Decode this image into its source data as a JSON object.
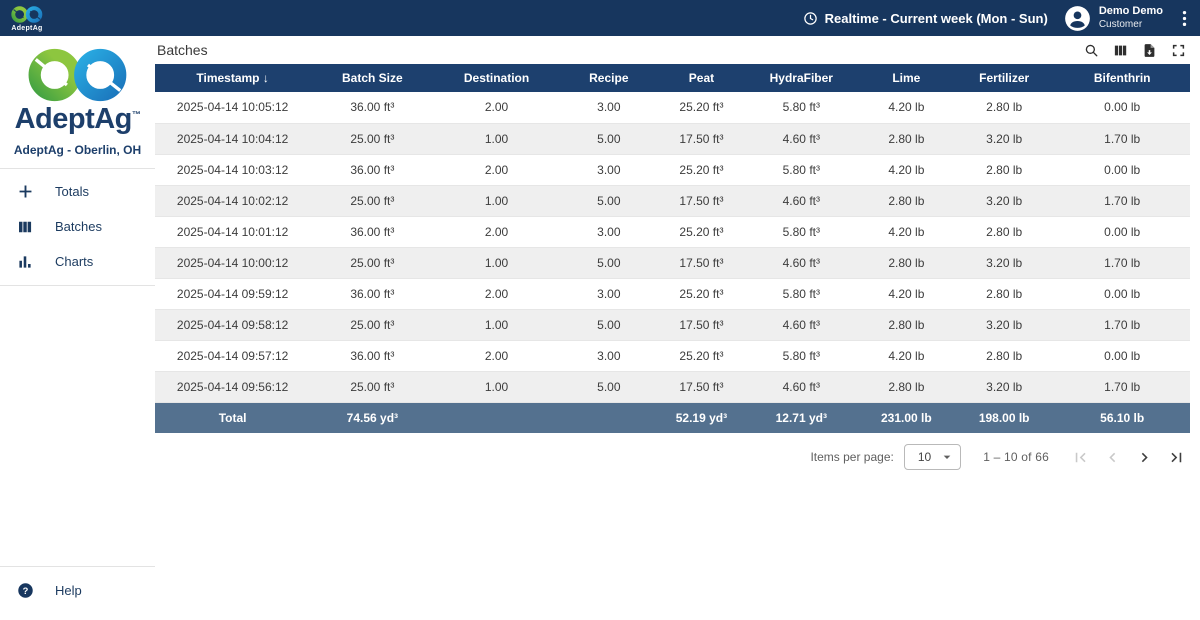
{
  "topbar": {
    "brand": "AdeptAg",
    "realtime_label": "Realtime - Current week (Mon - Sun)",
    "user_name": "Demo Demo",
    "user_role": "Customer"
  },
  "sidebar": {
    "brand": "AdeptAg",
    "brand_trademark": "™",
    "location": "AdeptAg - Oberlin, OH",
    "items": [
      {
        "label": "Totals",
        "icon": "plus-icon"
      },
      {
        "label": "Batches",
        "icon": "view-columns-icon"
      },
      {
        "label": "Charts",
        "icon": "bar-chart-icon"
      }
    ],
    "help_label": "Help"
  },
  "main": {
    "title": "Batches",
    "table": {
      "columns": [
        "Timestamp",
        "Batch Size",
        "Destination",
        "Recipe",
        "Peat",
        "HydraFiber",
        "Lime",
        "Fertilizer",
        "Bifenthrin"
      ],
      "sort_column": "Timestamp",
      "sort_indicator": "↓",
      "rows": [
        [
          "2025-04-14 10:05:12",
          "36.00 ft³",
          "2.00",
          "3.00",
          "25.20 ft³",
          "5.80 ft³",
          "4.20 lb",
          "2.80 lb",
          "0.00 lb"
        ],
        [
          "2025-04-14 10:04:12",
          "25.00 ft³",
          "1.00",
          "5.00",
          "17.50 ft³",
          "4.60 ft³",
          "2.80 lb",
          "3.20 lb",
          "1.70 lb"
        ],
        [
          "2025-04-14 10:03:12",
          "36.00 ft³",
          "2.00",
          "3.00",
          "25.20 ft³",
          "5.80 ft³",
          "4.20 lb",
          "2.80 lb",
          "0.00 lb"
        ],
        [
          "2025-04-14 10:02:12",
          "25.00 ft³",
          "1.00",
          "5.00",
          "17.50 ft³",
          "4.60 ft³",
          "2.80 lb",
          "3.20 lb",
          "1.70 lb"
        ],
        [
          "2025-04-14 10:01:12",
          "36.00 ft³",
          "2.00",
          "3.00",
          "25.20 ft³",
          "5.80 ft³",
          "4.20 lb",
          "2.80 lb",
          "0.00 lb"
        ],
        [
          "2025-04-14 10:00:12",
          "25.00 ft³",
          "1.00",
          "5.00",
          "17.50 ft³",
          "4.60 ft³",
          "2.80 lb",
          "3.20 lb",
          "1.70 lb"
        ],
        [
          "2025-04-14 09:59:12",
          "36.00 ft³",
          "2.00",
          "3.00",
          "25.20 ft³",
          "5.80 ft³",
          "4.20 lb",
          "2.80 lb",
          "0.00 lb"
        ],
        [
          "2025-04-14 09:58:12",
          "25.00 ft³",
          "1.00",
          "5.00",
          "17.50 ft³",
          "4.60 ft³",
          "2.80 lb",
          "3.20 lb",
          "1.70 lb"
        ],
        [
          "2025-04-14 09:57:12",
          "36.00 ft³",
          "2.00",
          "3.00",
          "25.20 ft³",
          "5.80 ft³",
          "4.20 lb",
          "2.80 lb",
          "0.00 lb"
        ],
        [
          "2025-04-14 09:56:12",
          "25.00 ft³",
          "1.00",
          "5.00",
          "17.50 ft³",
          "4.60 ft³",
          "2.80 lb",
          "3.20 lb",
          "1.70 lb"
        ]
      ],
      "total_row": [
        "Total",
        "74.56 yd³",
        "",
        "",
        "52.19 yd³",
        "12.71 yd³",
        "231.00 lb",
        "198.00 lb",
        "56.10 lb"
      ]
    },
    "pagination": {
      "items_per_page_label": "Items per page:",
      "items_per_page_value": "10",
      "range_label": "1 – 10 of 66"
    }
  },
  "icons": {
    "clock-icon": "clock",
    "avatar-icon": "person-in-circle",
    "kebab-menu-icon": "vertical-dots",
    "search-icon": "magnifier",
    "view-columns-icon": "three-vertical-bars",
    "export-icon": "file-download",
    "fullscreen-icon": "expand-corners",
    "plus-icon": "plus",
    "bar-chart-icon": "bars",
    "help-icon": "question-circle",
    "sort-desc-icon": "↓",
    "dropdown-caret-icon": "▾",
    "first-page-icon": "|<",
    "prev-page-icon": "<",
    "next-page-icon": ">",
    "last-page-icon": ">|"
  },
  "colors": {
    "topbar_bg": "#17365E",
    "table_header_bg": "#1D406E",
    "total_row_bg": "#54718F",
    "row_alt_bg": "#EFEFEF",
    "brand_navy": "#1D3F6B",
    "logo_green": "#8DC63F",
    "logo_green_dark": "#3FA142",
    "logo_blue": "#29ABE2",
    "logo_blue_dark": "#1B75BC"
  }
}
